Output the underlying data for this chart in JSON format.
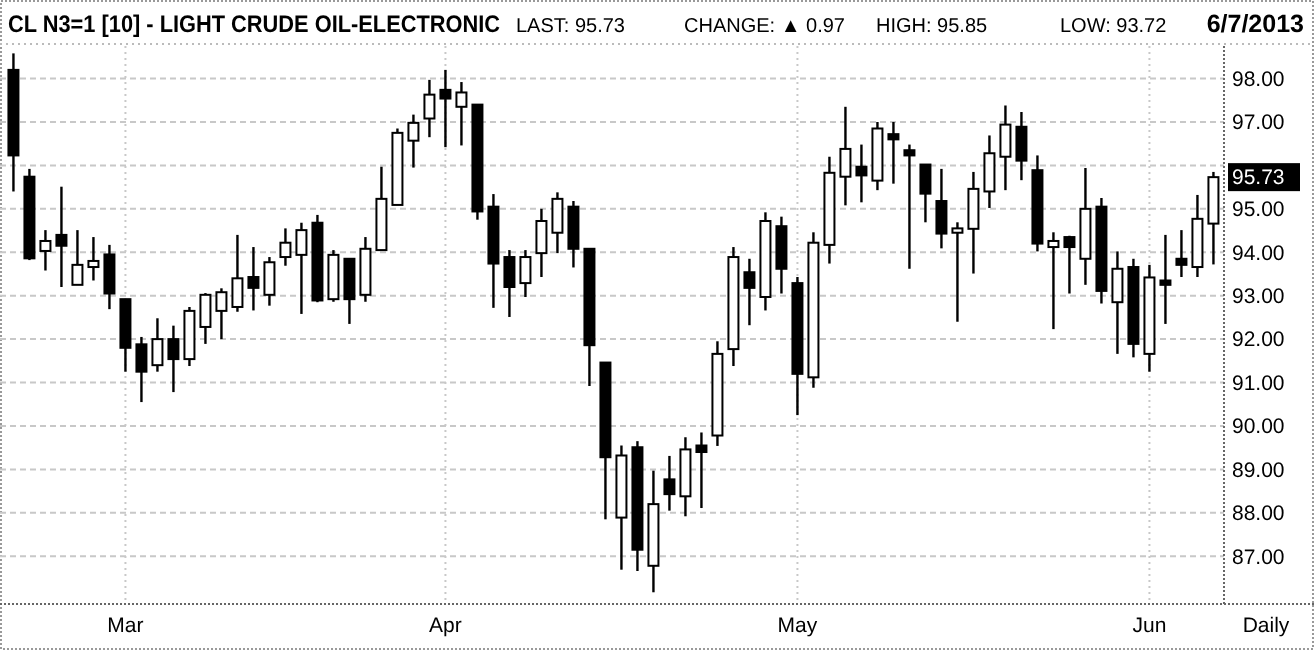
{
  "chart_data": {
    "type": "candlestick",
    "title": "CL N3=1 [10] - LIGHT CRUDE OIL-ELECTRONIC",
    "annotations": [
      "LAST: 95.73",
      "CHANGE: ▲ 0.97",
      "HIGH: 95.85",
      "LOW: 93.72",
      "6/7/2013",
      "Daily",
      "95.73"
    ],
    "categories": [
      null,
      null,
      null,
      null,
      null,
      null,
      null,
      "Mar",
      null,
      null,
      null,
      null,
      null,
      null,
      null,
      null,
      null,
      null,
      null,
      null,
      null,
      null,
      null,
      null,
      null,
      null,
      null,
      "Apr",
      null,
      null,
      null,
      null,
      null,
      null,
      null,
      null,
      null,
      null,
      null,
      null,
      null,
      null,
      null,
      null,
      null,
      null,
      null,
      null,
      null,
      "May",
      null,
      null,
      null,
      null,
      null,
      null,
      null,
      null,
      null,
      null,
      null,
      null,
      null,
      null,
      null,
      null,
      null,
      null,
      null,
      null,
      null,
      "Jun",
      null,
      null,
      null,
      null
    ],
    "ohlc": [
      [
        98.2,
        98.58,
        95.4,
        96.23
      ],
      [
        95.74,
        95.92,
        93.82,
        93.86
      ],
      [
        94.03,
        94.51,
        93.58,
        94.26
      ],
      [
        94.4,
        95.51,
        93.2,
        94.15
      ],
      [
        93.25,
        94.51,
        93.25,
        93.71
      ],
      [
        93.66,
        94.35,
        93.35,
        93.8
      ],
      [
        93.95,
        94.17,
        92.69,
        93.05
      ],
      [
        92.92,
        92.92,
        91.25,
        91.8
      ],
      [
        91.88,
        92.05,
        90.55,
        91.25
      ],
      [
        91.4,
        92.48,
        91.25,
        92.0
      ],
      [
        92.0,
        92.31,
        90.78,
        91.54
      ],
      [
        91.54,
        92.74,
        91.38,
        92.65
      ],
      [
        92.28,
        93.06,
        91.89,
        93.02
      ],
      [
        92.65,
        93.17,
        92.0,
        93.08
      ],
      [
        92.74,
        94.4,
        92.63,
        93.4
      ],
      [
        93.43,
        94.12,
        92.66,
        93.18
      ],
      [
        93.02,
        93.89,
        92.77,
        93.77
      ],
      [
        93.89,
        94.55,
        93.69,
        94.22
      ],
      [
        93.94,
        94.68,
        92.58,
        94.51
      ],
      [
        94.68,
        94.86,
        92.85,
        92.89
      ],
      [
        92.92,
        94.05,
        92.86,
        93.94
      ],
      [
        93.85,
        93.86,
        92.35,
        92.92
      ],
      [
        93.02,
        94.35,
        92.86,
        94.08
      ],
      [
        94.05,
        95.97,
        94.05,
        95.23
      ],
      [
        95.09,
        96.85,
        95.09,
        96.75
      ],
      [
        96.57,
        97.17,
        95.95,
        96.98
      ],
      [
        97.08,
        97.97,
        96.65,
        97.63
      ],
      [
        97.74,
        98.2,
        96.42,
        97.54
      ],
      [
        97.35,
        97.92,
        96.46,
        97.68
      ],
      [
        97.4,
        97.4,
        94.75,
        94.94
      ],
      [
        95.05,
        95.34,
        92.72,
        93.74
      ],
      [
        93.89,
        94.05,
        92.51,
        93.2
      ],
      [
        93.29,
        94.05,
        92.97,
        93.89
      ],
      [
        93.98,
        95.0,
        93.43,
        94.72
      ],
      [
        94.45,
        95.38,
        93.98,
        95.23
      ],
      [
        95.05,
        95.18,
        93.65,
        94.08
      ],
      [
        94.08,
        94.08,
        90.92,
        91.86
      ],
      [
        91.46,
        91.46,
        87.85,
        89.28
      ],
      [
        87.89,
        89.55,
        86.69,
        89.32
      ],
      [
        89.51,
        89.65,
        86.66,
        87.15
      ],
      [
        86.78,
        88.97,
        86.17,
        88.2
      ],
      [
        88.77,
        89.31,
        88.05,
        88.43
      ],
      [
        88.38,
        89.74,
        87.92,
        89.46
      ],
      [
        89.55,
        89.85,
        88.11,
        89.4
      ],
      [
        89.78,
        91.95,
        89.54,
        91.66
      ],
      [
        91.77,
        94.12,
        91.38,
        93.89
      ],
      [
        93.54,
        93.85,
        92.32,
        93.18
      ],
      [
        92.97,
        94.92,
        92.66,
        94.72
      ],
      [
        94.6,
        94.82,
        93.05,
        93.62
      ],
      [
        93.29,
        93.43,
        90.25,
        91.2
      ],
      [
        91.12,
        94.46,
        90.88,
        94.22
      ],
      [
        94.17,
        96.2,
        93.74,
        95.83
      ],
      [
        95.74,
        97.35,
        95.08,
        96.38
      ],
      [
        95.97,
        96.48,
        95.15,
        95.77
      ],
      [
        95.65,
        97.0,
        95.43,
        96.85
      ],
      [
        96.72,
        97.0,
        95.58,
        96.6
      ],
      [
        96.35,
        96.48,
        93.62,
        96.23
      ],
      [
        96.02,
        96.02,
        94.69,
        95.35
      ],
      [
        95.18,
        95.92,
        94.09,
        94.43
      ],
      [
        94.45,
        94.69,
        92.4,
        94.55
      ],
      [
        94.54,
        95.85,
        93.51,
        95.46
      ],
      [
        95.4,
        96.69,
        95.02,
        96.28
      ],
      [
        96.2,
        97.38,
        95.43,
        96.94
      ],
      [
        96.89,
        97.23,
        95.66,
        96.11
      ],
      [
        95.89,
        96.23,
        94.02,
        94.2
      ],
      [
        94.12,
        94.46,
        92.23,
        94.26
      ],
      [
        94.35,
        94.38,
        93.05,
        94.12
      ],
      [
        93.85,
        95.94,
        93.25,
        95.0
      ],
      [
        95.05,
        95.25,
        92.82,
        93.11
      ],
      [
        92.85,
        94.02,
        91.66,
        93.62
      ],
      [
        93.66,
        93.85,
        91.58,
        91.89
      ],
      [
        91.66,
        93.71,
        91.25,
        93.42
      ],
      [
        93.35,
        94.4,
        92.35,
        93.25
      ],
      [
        93.85,
        94.51,
        93.43,
        93.71
      ],
      [
        93.66,
        95.32,
        93.43,
        94.77
      ],
      [
        94.66,
        95.85,
        93.72,
        95.73
      ]
    ],
    "color": "#000000",
    "ylim": [
      85.9,
      98.75
    ],
    "yticks": [
      {
        "value": 87,
        "label": "87.00"
      },
      {
        "value": 88,
        "label": "88.00"
      },
      {
        "value": 89,
        "label": "89.00"
      },
      {
        "value": 90,
        "label": "90.00"
      },
      {
        "value": 91,
        "label": "91.00"
      },
      {
        "value": 92,
        "label": "92.00"
      },
      {
        "value": 93,
        "label": "93.00"
      },
      {
        "value": 94,
        "label": "94.00"
      },
      {
        "value": 95,
        "label": "95.00"
      },
      {
        "value": 96,
        "label": null
      },
      {
        "value": 97,
        "label": "97.00"
      },
      {
        "value": 98,
        "label": "98.00"
      }
    ],
    "grid": true
  }
}
